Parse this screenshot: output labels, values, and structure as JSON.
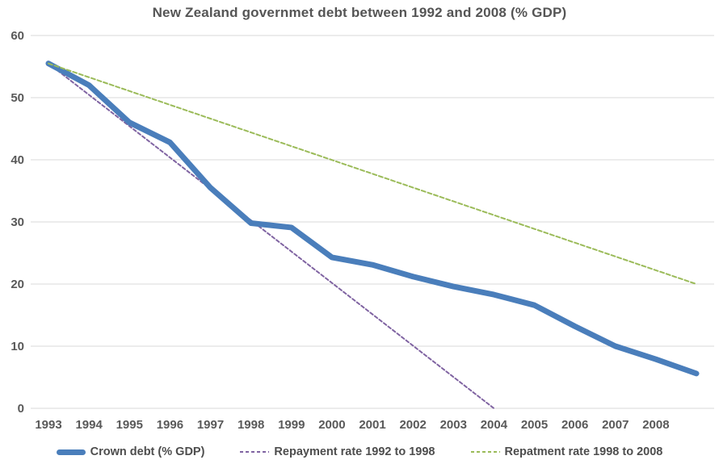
{
  "chart_data": {
    "type": "line",
    "title": "New Zealand governmet debt between 1992 and 2008 (% GDP)",
    "x_tick_labels": [
      "1993",
      "1994",
      "1995",
      "1996",
      "1997",
      "1998",
      "1999",
      "2000",
      "2001",
      "2002",
      "2003",
      "2004",
      "2005",
      "2006",
      "2007",
      "2008"
    ],
    "x_start_year": 1993,
    "y_ticks": [
      0,
      10,
      20,
      30,
      40,
      50,
      60
    ],
    "ylim": [
      0,
      60
    ],
    "xlabel": "",
    "ylabel": "",
    "grid": true,
    "legend_position": "bottom",
    "colors": {
      "grid": "#d9d9d9",
      "axis_text": "#595959",
      "title_text": "#555555",
      "legend_text": "#4d4d4d"
    },
    "series": [
      {
        "name": "Crown debt (% GDP)",
        "color": "#4a7ebb",
        "style": "solid",
        "stroke_width": 7,
        "x": [
          1993,
          1994,
          1995,
          1996,
          1997,
          1998,
          1999,
          2000,
          2001,
          2002,
          2003,
          2004,
          2005,
          2006,
          2007,
          2008,
          2009
        ],
        "values": [
          55.5,
          52.0,
          46.0,
          42.8,
          35.5,
          29.8,
          29.1,
          24.3,
          23.1,
          21.2,
          19.6,
          18.3,
          16.6,
          13.2,
          10.0,
          7.9,
          5.6
        ]
      },
      {
        "name": "Repayment rate 1992 to 1998",
        "color": "#8064a2",
        "style": "dashed",
        "stroke_width": 2,
        "dash": "4 3",
        "x": [
          1993,
          2004
        ],
        "values": [
          55.5,
          0
        ]
      },
      {
        "name": "Repatment rate 1998 to 2008",
        "color": "#9bbb59",
        "style": "dashed",
        "stroke_width": 2,
        "dash": "5 3",
        "x": [
          1993,
          2009
        ],
        "values": [
          55.5,
          20
        ]
      }
    ]
  }
}
